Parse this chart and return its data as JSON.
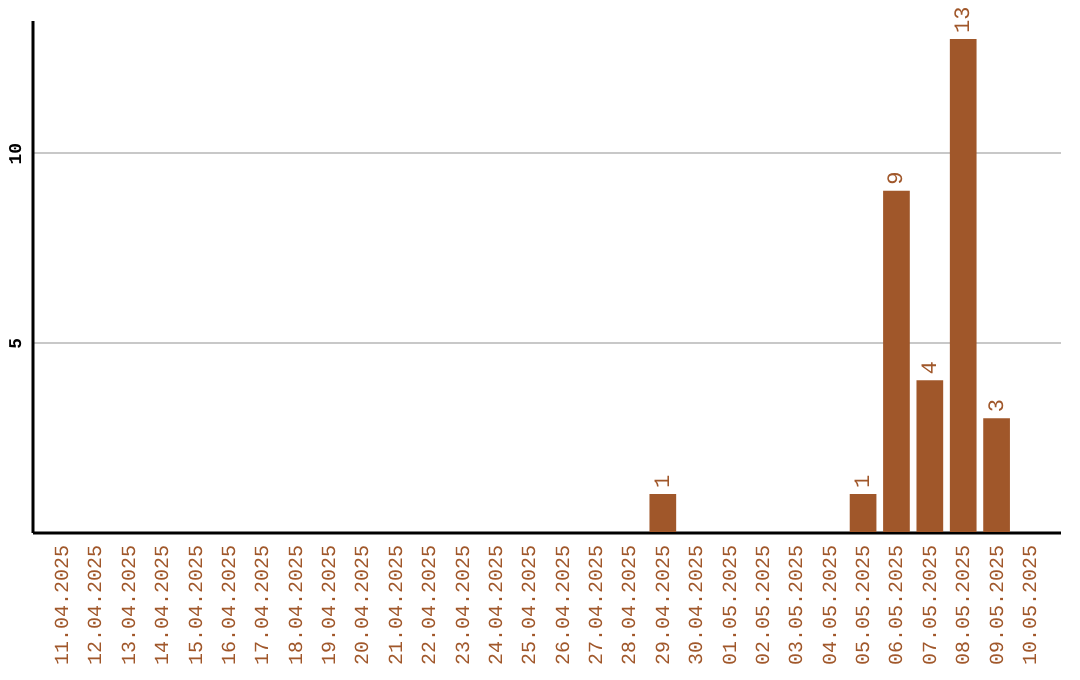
{
  "chart_data": {
    "type": "bar",
    "categories": [
      "11.04.2025",
      "12.04.2025",
      "13.04.2025",
      "14.04.2025",
      "15.04.2025",
      "16.04.2025",
      "17.04.2025",
      "18.04.2025",
      "19.04.2025",
      "20.04.2025",
      "21.04.2025",
      "22.04.2025",
      "23.04.2025",
      "24.04.2025",
      "25.04.2025",
      "26.04.2025",
      "27.04.2025",
      "28.04.2025",
      "29.04.2025",
      "30.04.2025",
      "01.05.2025",
      "02.05.2025",
      "03.05.2025",
      "04.05.2025",
      "05.05.2025",
      "06.05.2025",
      "07.05.2025",
      "08.05.2025",
      "09.05.2025",
      "10.05.2025"
    ],
    "values": [
      0,
      0,
      0,
      0,
      0,
      0,
      0,
      0,
      0,
      0,
      0,
      0,
      0,
      0,
      0,
      0,
      0,
      0,
      1,
      0,
      0,
      0,
      0,
      0,
      1,
      9,
      4,
      13,
      3,
      0
    ],
    "value_labels": [
      null,
      null,
      null,
      null,
      null,
      null,
      null,
      null,
      null,
      null,
      null,
      null,
      null,
      null,
      null,
      null,
      null,
      null,
      "1",
      null,
      null,
      null,
      null,
      null,
      "1",
      "9",
      "4",
      "13",
      "3",
      null
    ],
    "color": "#a0572a",
    "ylim": [
      0,
      13.5
    ],
    "yticks": [
      5,
      10
    ],
    "grid": "y"
  }
}
